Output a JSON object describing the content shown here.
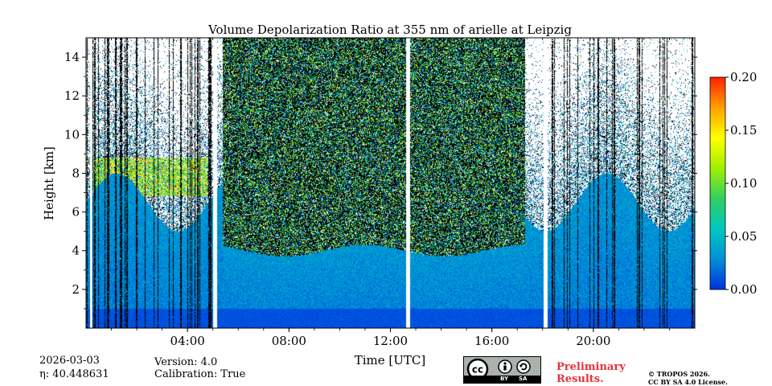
{
  "chart_data": {
    "type": "heatmap",
    "title": "Volume Depolarization Ratio at 355 nm of arielle at Leipzig",
    "xlabel": "Time [UTC]",
    "ylabel": "Height [km]",
    "xlim_hours": [
      0,
      24
    ],
    "ylim_km": [
      0,
      15
    ],
    "x_ticks": [
      {
        "hour": 4,
        "label": "04:00"
      },
      {
        "hour": 8,
        "label": "08:00"
      },
      {
        "hour": 12,
        "label": "12:00"
      },
      {
        "hour": 16,
        "label": "16:00"
      },
      {
        "hour": 20,
        "label": "20:00"
      }
    ],
    "y_ticks": [
      {
        "km": 2,
        "label": "2"
      },
      {
        "km": 4,
        "label": "4"
      },
      {
        "km": 6,
        "label": "6"
      },
      {
        "km": 8,
        "label": "8"
      },
      {
        "km": 10,
        "label": "10"
      },
      {
        "km": 12,
        "label": "12"
      },
      {
        "km": 14,
        "label": "14"
      }
    ],
    "colorbar": {
      "range": [
        0.0,
        0.2
      ],
      "ticks": [
        {
          "value": 0.0,
          "label": "0.00"
        },
        {
          "value": 0.05,
          "label": "0.05"
        },
        {
          "value": 0.1,
          "label": "0.10"
        },
        {
          "value": 0.15,
          "label": "0.15"
        },
        {
          "value": 0.2,
          "label": "0.20"
        }
      ],
      "colors": [
        "#0030e0",
        "#0090d8",
        "#00c8c0",
        "#30d060",
        "#a0f000",
        "#ffff00",
        "#ffa000",
        "#ff2000"
      ]
    },
    "data_gaps_hours": [
      [
        0.15,
        0.25
      ],
      [
        5.0,
        5.17
      ],
      [
        12.62,
        12.78
      ],
      [
        18.05,
        18.2
      ]
    ],
    "noisy_period_hours": [
      5.4,
      17.3
    ],
    "cirrus_layer": {
      "hours": [
        0.3,
        4.8
      ],
      "km": [
        6.8,
        8.8
      ]
    },
    "boundary_layer_top_km": 4.0
  },
  "footer": {
    "date": "2026-03-03",
    "eta": "η: 40.448631",
    "version": "Version: 4.0",
    "calibration": "Calibration: True",
    "license_badge": {
      "cc": "cc",
      "by": "BY",
      "sa": "SA"
    },
    "preliminary_line1": "Preliminary",
    "preliminary_line2": "Results.",
    "copyright_line1": "© TROPOS 2026.",
    "copyright_line2": "CC BY SA 4.0 License."
  }
}
